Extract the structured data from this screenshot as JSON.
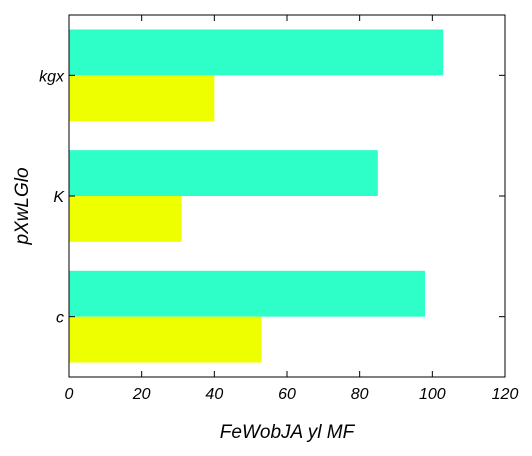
{
  "chart_data": {
    "type": "bar",
    "orientation": "horizontal",
    "title": "",
    "xlabel": "FeWobJA yl MF",
    "ylabel": "pXwLGlo",
    "categories": [
      "c",
      "K",
      "kgx"
    ],
    "series": [
      {
        "color": "#2effc8",
        "values": [
          98,
          85,
          103
        ]
      },
      {
        "color": "#eeff00",
        "values": [
          53,
          31,
          40
        ]
      }
    ],
    "xlim": [
      0,
      120
    ],
    "xticks": [
      0,
      20,
      40,
      60,
      80,
      100,
      120
    ],
    "grid": false
  }
}
